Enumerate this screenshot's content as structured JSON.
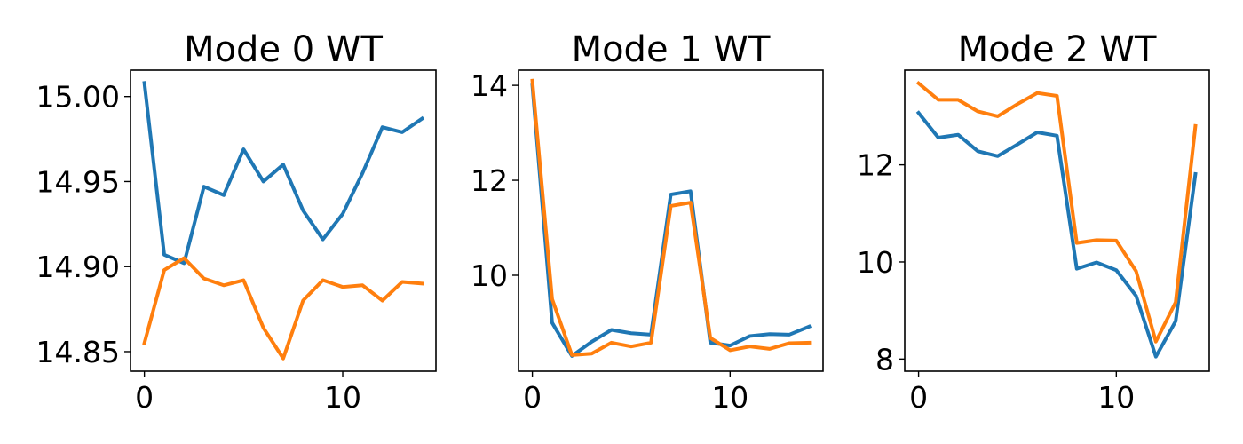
{
  "chart_data": [
    {
      "type": "line",
      "title": "Mode 0 WT",
      "xlim": [
        -0.7,
        14.7
      ],
      "ylim": [
        14.8385,
        15.0155
      ],
      "xticks": [
        0,
        10
      ],
      "xtick_labels": [
        "0",
        "10"
      ],
      "yticks": [
        14.85,
        14.9,
        14.95,
        15.0
      ],
      "ytick_labels": [
        "14.85",
        "14.90",
        "14.95",
        "15.00"
      ],
      "grid": false,
      "series": [
        {
          "color": "#1f77b4",
          "x": [
            0,
            1,
            2,
            3,
            4,
            5,
            6,
            7,
            8,
            9,
            10,
            11,
            12,
            13,
            14
          ],
          "values": [
            15.008,
            14.907,
            14.902,
            14.947,
            14.942,
            14.969,
            14.95,
            14.96,
            14.933,
            14.916,
            14.931,
            14.955,
            14.982,
            14.979,
            14.987
          ]
        },
        {
          "color": "#ff7f0e",
          "x": [
            0,
            1,
            2,
            3,
            4,
            5,
            6,
            7,
            8,
            9,
            10,
            11,
            12,
            13,
            14
          ],
          "values": [
            14.855,
            14.898,
            14.905,
            14.893,
            14.889,
            14.892,
            14.864,
            14.846,
            14.88,
            14.892,
            14.888,
            14.889,
            14.88,
            14.891,
            14.89
          ]
        }
      ]
    },
    {
      "type": "line",
      "title": "Mode 1 WT",
      "xlim": [
        -0.7,
        14.7
      ],
      "ylim": [
        7.98,
        14.32
      ],
      "xticks": [
        0,
        10
      ],
      "xtick_labels": [
        "0",
        "10"
      ],
      "yticks": [
        10,
        12,
        14
      ],
      "ytick_labels": [
        "10",
        "12",
        "14"
      ],
      "grid": false,
      "series": [
        {
          "color": "#1f77b4",
          "x": [
            0,
            1,
            2,
            3,
            4,
            5,
            6,
            7,
            8,
            9,
            10,
            11,
            12,
            13,
            14
          ],
          "values": [
            14.0,
            9.0,
            8.3,
            8.6,
            8.85,
            8.78,
            8.75,
            11.7,
            11.77,
            8.58,
            8.52,
            8.72,
            8.76,
            8.75,
            8.92
          ]
        },
        {
          "color": "#ff7f0e",
          "x": [
            0,
            1,
            2,
            3,
            4,
            5,
            6,
            7,
            8,
            9,
            10,
            11,
            12,
            13,
            14
          ],
          "values": [
            14.1,
            9.5,
            8.32,
            8.35,
            8.58,
            8.5,
            8.58,
            11.46,
            11.53,
            8.68,
            8.42,
            8.5,
            8.45,
            8.57,
            8.58
          ]
        }
      ]
    },
    {
      "type": "line",
      "title": "Mode 2 WT",
      "xlim": [
        -0.7,
        14.7
      ],
      "ylim": [
        7.75,
        13.95
      ],
      "xticks": [
        0,
        10
      ],
      "xtick_labels": [
        "0",
        "10"
      ],
      "yticks": [
        8,
        10,
        12
      ],
      "ytick_labels": [
        "8",
        "10",
        "12"
      ],
      "grid": false,
      "series": [
        {
          "color": "#1f77b4",
          "x": [
            0,
            1,
            2,
            3,
            4,
            5,
            6,
            7,
            8,
            9,
            10,
            11,
            12,
            13,
            14
          ],
          "values": [
            13.07,
            12.56,
            12.62,
            12.28,
            12.18,
            12.42,
            12.67,
            12.6,
            9.86,
            9.99,
            9.83,
            9.3,
            8.05,
            8.78,
            11.81
          ]
        },
        {
          "color": "#ff7f0e",
          "x": [
            0,
            1,
            2,
            3,
            4,
            5,
            6,
            7,
            8,
            9,
            10,
            11,
            12,
            13,
            14
          ],
          "values": [
            13.68,
            13.34,
            13.34,
            13.1,
            13.0,
            13.25,
            13.48,
            13.42,
            10.39,
            10.45,
            10.44,
            9.81,
            8.36,
            9.17,
            12.8
          ]
        }
      ]
    }
  ]
}
